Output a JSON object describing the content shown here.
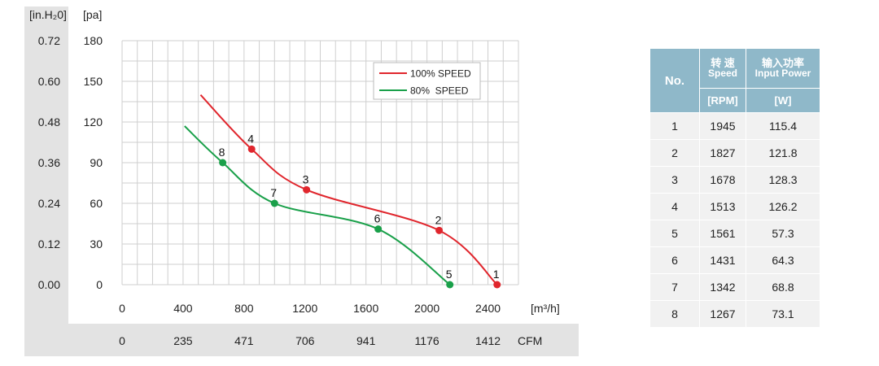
{
  "chart_data": {
    "type": "line",
    "unit_left_outer": "[in.H₂0]",
    "unit_left_inner": "[pa]",
    "ticks_inh2o": [
      "0.72",
      "0.60",
      "0.48",
      "0.36",
      "0.24",
      "0.12",
      "0.00"
    ],
    "ticks_pa": [
      "180",
      "150",
      "120",
      "90",
      "60",
      "30",
      "0"
    ],
    "xlabel_m3h": "[m³/h]",
    "xlabel_cfm": "CFM",
    "ticks_m3h": [
      "0",
      "400",
      "800",
      "1200",
      "1600",
      "2000",
      "2400"
    ],
    "ticks_cfm": [
      "0",
      "235",
      "471",
      "706",
      "941",
      "1176",
      "1412"
    ],
    "xlim": [
      0,
      2600
    ],
    "ylim": [
      0,
      180
    ],
    "grid": true,
    "legend_position": "top-right",
    "series": [
      {
        "name": "100% SPEED",
        "color": "#e0262d",
        "curve": [
          [
            515,
            140
          ],
          [
            850,
            100
          ],
          [
            1210,
            70
          ],
          [
            2080,
            40
          ],
          [
            2460,
            0
          ]
        ],
        "points": [
          {
            "label": "1",
            "x": 2460,
            "y": 0
          },
          {
            "label": "2",
            "x": 2080,
            "y": 40
          },
          {
            "label": "3",
            "x": 1210,
            "y": 70
          },
          {
            "label": "4",
            "x": 850,
            "y": 100
          }
        ]
      },
      {
        "name": "80%  SPEED",
        "color": "#1aa04a",
        "curve": [
          [
            410,
            117
          ],
          [
            660,
            90
          ],
          [
            1000,
            60
          ],
          [
            1680,
            41
          ],
          [
            2150,
            0
          ]
        ],
        "points": [
          {
            "label": "5",
            "x": 2150,
            "y": 0
          },
          {
            "label": "6",
            "x": 1680,
            "y": 41
          },
          {
            "label": "7",
            "x": 1000,
            "y": 60
          },
          {
            "label": "8",
            "x": 660,
            "y": 90
          }
        ]
      }
    ]
  },
  "table": {
    "col_no": "No.",
    "col_speed_cn": "转 速",
    "col_speed_en": "Speed",
    "col_power_cn": "输入功率",
    "col_power_en": "Input Power",
    "unit_speed": "[RPM]",
    "unit_power": "[W]",
    "rows": [
      {
        "no": "1",
        "rpm": "1945",
        "w": "115.4"
      },
      {
        "no": "2",
        "rpm": "1827",
        "w": "121.8"
      },
      {
        "no": "3",
        "rpm": "1678",
        "w": "128.3"
      },
      {
        "no": "4",
        "rpm": "1513",
        "w": "126.2"
      },
      {
        "no": "5",
        "rpm": "1561",
        "w": "57.3"
      },
      {
        "no": "6",
        "rpm": "1431",
        "w": "64.3"
      },
      {
        "no": "7",
        "rpm": "1342",
        "w": "68.8"
      },
      {
        "no": "8",
        "rpm": "1267",
        "w": "73.1"
      }
    ]
  }
}
